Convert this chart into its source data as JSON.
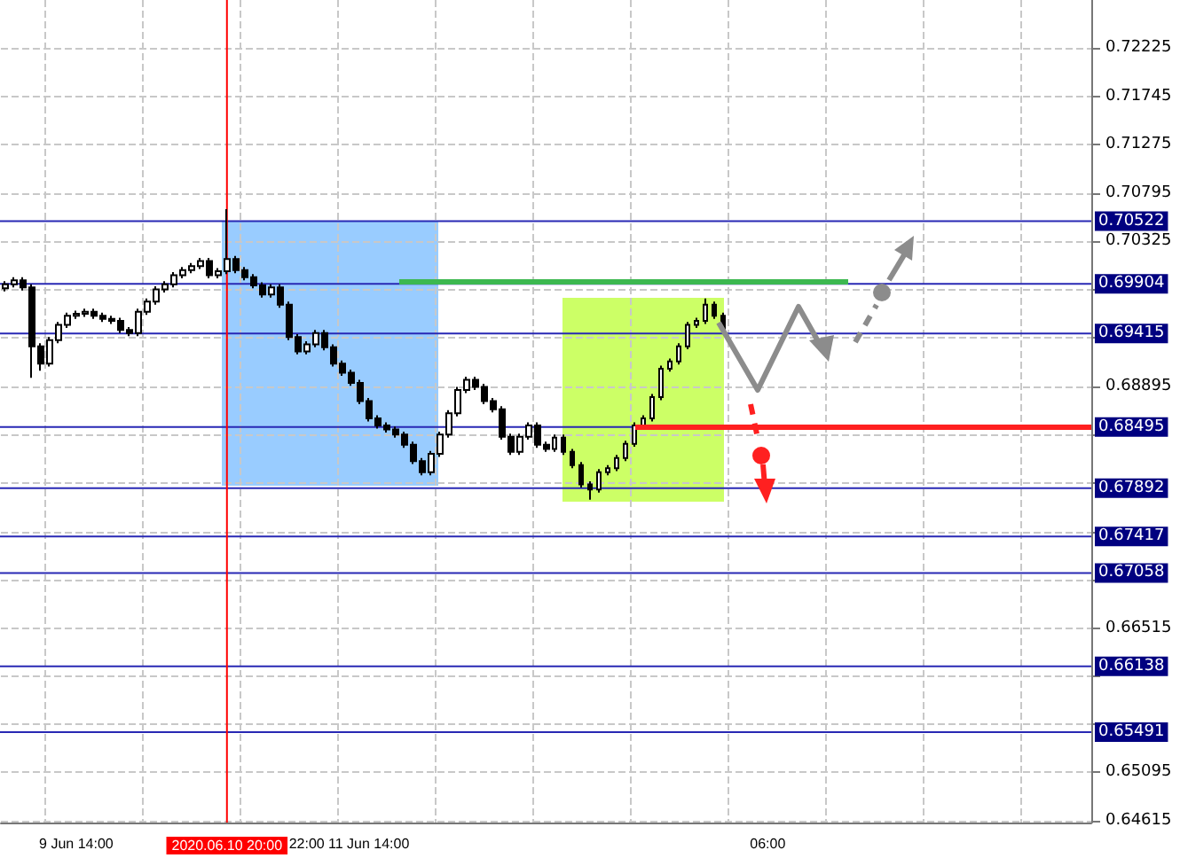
{
  "chart_data": {
    "type": "candlestick",
    "categories": [
      null,
      null,
      null,
      null,
      null,
      null,
      null,
      null,
      "9 Jun 14:00",
      null,
      null,
      null,
      null,
      null,
      null,
      null,
      null,
      null,
      null,
      null,
      null,
      null,
      null,
      null,
      null,
      "2020.06.10 20:00",
      null,
      null,
      null,
      null,
      null,
      null,
      null,
      null,
      "22:00",
      null,
      null,
      null,
      null,
      null,
      null,
      "11 Jun 14:00",
      null,
      null,
      null,
      null,
      null,
      null,
      null,
      null,
      null,
      null,
      null,
      null,
      null,
      null,
      null,
      null,
      null,
      null,
      null,
      null,
      null,
      null,
      null,
      null,
      null,
      null,
      null,
      null,
      null,
      null,
      null,
      null,
      null,
      null,
      null,
      null,
      null,
      null,
      null,
      null,
      null,
      null,
      null,
      null,
      "06:00",
      null,
      null,
      null,
      null,
      null,
      null,
      null,
      null,
      null,
      null,
      null,
      null,
      null,
      null,
      null,
      null,
      null,
      null,
      null,
      null,
      null,
      null,
      null,
      null,
      null,
      null,
      null,
      null,
      null,
      null,
      null,
      null,
      null,
      null,
      null,
      null
    ],
    "ohlc": [
      [
        0.6986,
        0.6993,
        0.6983,
        0.699
      ],
      [
        0.699,
        0.6997,
        0.6987,
        0.6994
      ],
      [
        0.6994,
        0.6997,
        0.6984,
        0.6987
      ],
      [
        0.6987,
        0.699,
        0.6898,
        0.6929
      ],
      [
        0.6929,
        0.6932,
        0.6905,
        0.6912
      ],
      [
        0.6912,
        0.6938,
        0.6909,
        0.6935
      ],
      [
        0.6935,
        0.6953,
        0.6932,
        0.695
      ],
      [
        0.695,
        0.6962,
        0.6947,
        0.6959
      ],
      [
        0.6959,
        0.6964,
        0.6956,
        0.6961
      ],
      [
        0.6961,
        0.6966,
        0.6958,
        0.6963
      ],
      [
        0.6963,
        0.6966,
        0.6956,
        0.6959
      ],
      [
        0.6959,
        0.6962,
        0.6953,
        0.6956
      ],
      [
        0.6956,
        0.6959,
        0.6951,
        0.6954
      ],
      [
        0.6954,
        0.6957,
        0.6942,
        0.6945
      ],
      [
        0.6945,
        0.6948,
        0.6939,
        0.6942
      ],
      [
        0.6942,
        0.6966,
        0.6939,
        0.6963
      ],
      [
        0.6963,
        0.6976,
        0.696,
        0.6973
      ],
      [
        0.6973,
        0.6988,
        0.697,
        0.6985
      ],
      [
        0.6985,
        0.6993,
        0.6982,
        0.699
      ],
      [
        0.699,
        0.7002,
        0.6987,
        0.6999
      ],
      [
        0.6999,
        0.7007,
        0.6996,
        0.7004
      ],
      [
        0.7004,
        0.7011,
        0.7001,
        0.7008
      ],
      [
        0.7008,
        0.7016,
        0.7005,
        0.7013
      ],
      [
        0.7013,
        0.7016,
        0.6996,
        0.6999
      ],
      [
        0.6999,
        0.7006,
        0.6996,
        0.7003
      ],
      [
        0.7003,
        0.7064,
        0.7,
        0.7015
      ],
      [
        0.7015,
        0.7018,
        0.7001,
        0.7004
      ],
      [
        0.7004,
        0.7007,
        0.6994,
        0.6997
      ],
      [
        0.6997,
        0.7,
        0.6986,
        0.6989
      ],
      [
        0.6989,
        0.6992,
        0.6977,
        0.698
      ],
      [
        0.698,
        0.699,
        0.6977,
        0.6987
      ],
      [
        0.6987,
        0.699,
        0.6967,
        0.697
      ],
      [
        0.697,
        0.6973,
        0.6935,
        0.6938
      ],
      [
        0.6938,
        0.6941,
        0.6921,
        0.6924
      ],
      [
        0.6924,
        0.6934,
        0.6921,
        0.6931
      ],
      [
        0.6931,
        0.6945,
        0.6928,
        0.6942
      ],
      [
        0.6942,
        0.6945,
        0.6925,
        0.6928
      ],
      [
        0.6928,
        0.6931,
        0.6909,
        0.6912
      ],
      [
        0.6912,
        0.6915,
        0.69,
        0.6903
      ],
      [
        0.6903,
        0.6906,
        0.689,
        0.6893
      ],
      [
        0.6893,
        0.6896,
        0.6872,
        0.6875
      ],
      [
        0.6875,
        0.6878,
        0.6855,
        0.6858
      ],
      [
        0.6858,
        0.6861,
        0.6848,
        0.6851
      ],
      [
        0.6851,
        0.6854,
        0.6844,
        0.6847
      ],
      [
        0.6847,
        0.685,
        0.6839,
        0.6842
      ],
      [
        0.6842,
        0.6845,
        0.6829,
        0.6832
      ],
      [
        0.6832,
        0.6835,
        0.6813,
        0.6816
      ],
      [
        0.6816,
        0.6819,
        0.6802,
        0.6805
      ],
      [
        0.6805,
        0.6826,
        0.6802,
        0.6823
      ],
      [
        0.6823,
        0.6845,
        0.682,
        0.6842
      ],
      [
        0.6842,
        0.6866,
        0.6839,
        0.6863
      ],
      [
        0.6863,
        0.6889,
        0.686,
        0.6886
      ],
      [
        0.6886,
        0.6899,
        0.6883,
        0.6896
      ],
      [
        0.6896,
        0.6899,
        0.6886,
        0.6889
      ],
      [
        0.6889,
        0.6892,
        0.6872,
        0.6875
      ],
      [
        0.6875,
        0.6878,
        0.6864,
        0.6867
      ],
      [
        0.6867,
        0.687,
        0.6837,
        0.684
      ],
      [
        0.684,
        0.6843,
        0.6822,
        0.6825
      ],
      [
        0.6825,
        0.6843,
        0.6822,
        0.684
      ],
      [
        0.684,
        0.6854,
        0.6837,
        0.6851
      ],
      [
        0.6851,
        0.6854,
        0.6829,
        0.6832
      ],
      [
        0.6832,
        0.6835,
        0.6825,
        0.6828
      ],
      [
        0.6828,
        0.6842,
        0.6825,
        0.6839
      ],
      [
        0.6839,
        0.6842,
        0.6822,
        0.6825
      ],
      [
        0.6825,
        0.6828,
        0.6809,
        0.6812
      ],
      [
        0.6812,
        0.6815,
        0.679,
        0.6793
      ],
      [
        0.6793,
        0.6796,
        0.6778,
        0.6788
      ],
      [
        0.6788,
        0.6808,
        0.6785,
        0.6805
      ],
      [
        0.6805,
        0.6812,
        0.6802,
        0.6809
      ],
      [
        0.6809,
        0.6822,
        0.6806,
        0.6819
      ],
      [
        0.6819,
        0.6836,
        0.6816,
        0.6833
      ],
      [
        0.6833,
        0.6854,
        0.683,
        0.6851
      ],
      [
        0.6851,
        0.6861,
        0.6848,
        0.6858
      ],
      [
        0.6858,
        0.6882,
        0.6855,
        0.6879
      ],
      [
        0.6879,
        0.691,
        0.6876,
        0.6907
      ],
      [
        0.6907,
        0.6917,
        0.6904,
        0.6914
      ],
      [
        0.6914,
        0.6932,
        0.6911,
        0.6929
      ],
      [
        0.6929,
        0.6953,
        0.6926,
        0.695
      ],
      [
        0.695,
        0.6957,
        0.6947,
        0.6954
      ],
      [
        0.6954,
        0.6976,
        0.6951,
        0.697
      ],
      [
        0.697,
        0.6973,
        0.6956,
        0.6959
      ],
      [
        0.6959,
        0.6962,
        0.6942,
        0.6945
      ],
      null,
      null,
      null,
      null,
      null,
      null,
      null,
      null,
      null,
      null,
      null,
      null,
      null,
      null,
      null,
      null,
      null,
      null,
      null,
      null,
      null,
      null,
      null,
      null,
      null,
      null,
      null,
      null,
      null,
      null,
      null,
      null,
      null,
      null,
      null,
      null,
      null,
      null,
      null,
      null,
      null
    ],
    "ylim": [
      0.646,
      0.727
    ],
    "yticks": [
      0.72225,
      0.71745,
      0.71275,
      0.70795,
      0.70325,
      {
        "value": 0.69845,
        "label": null
      },
      {
        "value": 0.69375,
        "label": null
      },
      0.68895,
      {
        "value": 0.68425,
        "label": null
      },
      {
        "value": 0.67945,
        "label": null
      },
      {
        "value": 0.67465,
        "label": null
      },
      {
        "value": 0.66995,
        "label": null
      },
      0.66515,
      {
        "value": 0.66045,
        "label": null
      },
      {
        "value": 0.65565,
        "label": null
      },
      0.65095,
      0.64615
    ],
    "grid": true,
    "ref_lines": [
      {
        "axis": "y",
        "value": 0.70522,
        "label": "0.70522",
        "color": "#2828b4"
      },
      {
        "axis": "y",
        "value": 0.69904,
        "label": "0.69904",
        "color": "#2828b4"
      },
      {
        "axis": "y",
        "value": 0.69415,
        "label": "0.69415",
        "color": "#2828b4"
      },
      {
        "axis": "y",
        "value": 0.68495,
        "label": "0.68495",
        "color": "#2828b4"
      },
      {
        "axis": "y",
        "value": 0.67892,
        "label": "0.67892",
        "color": "#2828b4"
      },
      {
        "axis": "y",
        "value": 0.67417,
        "label": "0.67417",
        "color": "#2828b4"
      },
      {
        "axis": "y",
        "value": 0.67058,
        "label": "0.67058",
        "color": "#2828b4"
      },
      {
        "axis": "y",
        "value": 0.66138,
        "label": "0.66138",
        "color": "#2828b4"
      },
      {
        "axis": "y",
        "value": 0.65491,
        "label": "0.65491",
        "color": "#2828b4"
      },
      {
        "axis": "x",
        "value": "2020.06.10 20:00",
        "color": "#ff0000"
      }
    ]
  }
}
